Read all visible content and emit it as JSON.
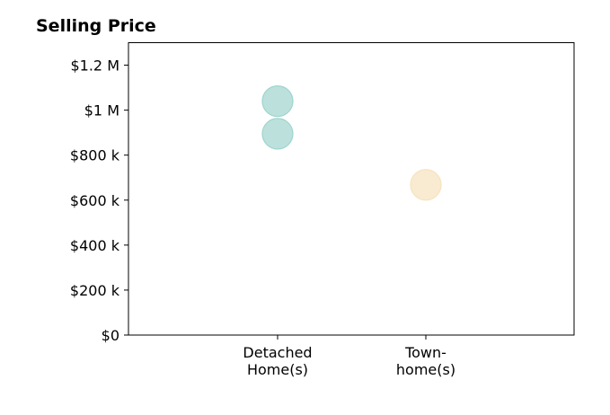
{
  "chart_data": {
    "type": "scatter",
    "title": "Selling Price",
    "xlabel": "",
    "ylabel": "",
    "categories": [
      [
        "Detached",
        "Home(s)"
      ],
      [
        "Town-",
        "home(s)"
      ]
    ],
    "ylim": [
      0,
      1300000
    ],
    "yticks": [
      0,
      200000,
      400000,
      600000,
      800000,
      1000000,
      1200000
    ],
    "ytick_labels": [
      "$0",
      "$200 k",
      "$400 k",
      "$600 k",
      "$800 k",
      "$1 M",
      "$1.2 M"
    ],
    "grid": false,
    "series": [
      {
        "category_index": 0,
        "color": "#9fd4cf",
        "values": [
          1040000,
          895000
        ]
      },
      {
        "category_index": 1,
        "color": "#f7e3bd",
        "values": [
          668000
        ]
      }
    ]
  }
}
